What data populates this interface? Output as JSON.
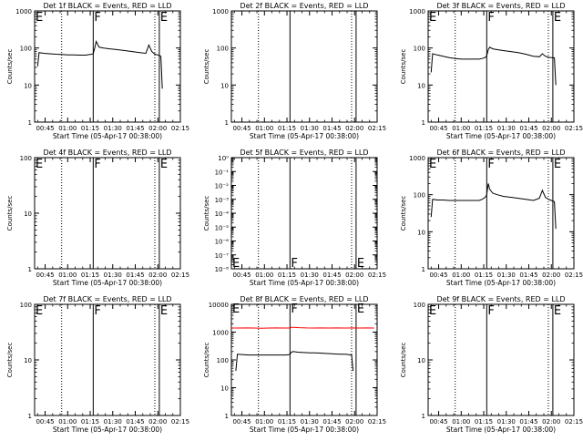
{
  "colors": {
    "events": "#000000",
    "lld": "#ff0000",
    "axis": "#000000"
  },
  "chart_data": [
    {
      "type": "line",
      "title": "Det 1f BLACK = Events, RED = LLD",
      "xlabel": "Start Time (05-Apr-17 00:38:00)",
      "ylabel": "Counts/sec",
      "yscale": "log",
      "xlim": [
        0,
        97
      ],
      "ylim": [
        1,
        1000
      ],
      "yticks": [
        1,
        10,
        100,
        1000
      ],
      "ytick_labels": [
        "1",
        "10",
        "100",
        "1000"
      ],
      "xticks": [
        7,
        22,
        37,
        52,
        67,
        82,
        97
      ],
      "xtick_labels": [
        "00:45",
        "01:00",
        "01:15",
        "01:30",
        "01:45",
        "02:00",
        "02:15"
      ],
      "markers": [
        {
          "x": 18,
          "style": "dotted",
          "label": ""
        },
        {
          "x": 39,
          "style": "solid",
          "label": "F"
        },
        {
          "x": 80,
          "style": "dotted",
          "label": ""
        },
        {
          "x": 83,
          "style": "solid",
          "label": "E"
        }
      ],
      "marker_labels": [
        {
          "text": "E",
          "x": 0
        }
      ],
      "series": [
        {
          "color": "#000000",
          "x": [
            2,
            3,
            6,
            10,
            14,
            18,
            22,
            26,
            30,
            34,
            36,
            38,
            39,
            40,
            41,
            43,
            46,
            50,
            55,
            60,
            65,
            70,
            74,
            76,
            78,
            80,
            82,
            84,
            85
          ],
          "y": [
            32,
            75,
            72,
            70,
            68,
            67,
            65,
            65,
            64,
            64,
            66,
            68,
            70,
            100,
            150,
            105,
            100,
            95,
            90,
            85,
            80,
            75,
            72,
            120,
            80,
            68,
            65,
            60,
            8
          ]
        }
      ]
    },
    {
      "type": "line",
      "title": "Det 2f BLACK = Events, RED = LLD",
      "xlabel": "Start Time (05-Apr-17 00:38:00)",
      "ylabel": "Counts/sec",
      "yscale": "log",
      "xlim": [
        0,
        97
      ],
      "ylim": [
        1,
        1000
      ],
      "yticks": [
        1,
        10,
        100,
        1000
      ],
      "ytick_labels": [
        "1",
        "10",
        "100",
        "1000"
      ],
      "xticks": [
        7,
        22,
        37,
        52,
        67,
        82,
        97
      ],
      "xtick_labels": [
        "00:45",
        "01:00",
        "01:15",
        "01:30",
        "01:45",
        "02:00",
        "02:15"
      ],
      "markers": [
        {
          "x": 18,
          "style": "dotted",
          "label": ""
        },
        {
          "x": 39,
          "style": "solid",
          "label": ""
        },
        {
          "x": 80,
          "style": "dotted",
          "label": ""
        },
        {
          "x": 83,
          "style": "solid",
          "label": ""
        }
      ],
      "marker_labels": [],
      "series": []
    },
    {
      "type": "line",
      "title": "Det 3f BLACK = Events, RED = LLD",
      "xlabel": "Start Time (05-Apr-17 00:38:00)",
      "ylabel": "Counts/sec",
      "yscale": "log",
      "xlim": [
        0,
        97
      ],
      "ylim": [
        1,
        1000
      ],
      "yticks": [
        1,
        10,
        100,
        1000
      ],
      "ytick_labels": [
        "1",
        "10",
        "100",
        "1000"
      ],
      "xticks": [
        7,
        22,
        37,
        52,
        67,
        82,
        97
      ],
      "xtick_labels": [
        "00:45",
        "01:00",
        "01:15",
        "01:30",
        "01:45",
        "02:00",
        "02:15"
      ],
      "markers": [
        {
          "x": 18,
          "style": "dotted",
          "label": ""
        },
        {
          "x": 39,
          "style": "solid",
          "label": "F"
        },
        {
          "x": 80,
          "style": "dotted",
          "label": ""
        },
        {
          "x": 83,
          "style": "solid",
          "label": "E"
        }
      ],
      "marker_labels": [
        {
          "text": "E",
          "x": 0
        }
      ],
      "series": [
        {
          "color": "#000000",
          "x": [
            2,
            3,
            6,
            10,
            14,
            18,
            22,
            26,
            30,
            34,
            36,
            38,
            39,
            40,
            41,
            43,
            46,
            50,
            55,
            60,
            65,
            70,
            74,
            76,
            78,
            80,
            82,
            84,
            85
          ],
          "y": [
            22,
            70,
            65,
            60,
            55,
            52,
            50,
            50,
            50,
            50,
            52,
            55,
            62,
            90,
            105,
            95,
            90,
            85,
            80,
            75,
            68,
            60,
            58,
            70,
            60,
            56,
            55,
            54,
            10
          ]
        }
      ]
    },
    {
      "type": "line",
      "title": "Det 4f BLACK = Events, RED = LLD",
      "xlabel": "Start Time (05-Apr-17 00:38:00)",
      "ylabel": "Counts/sec",
      "yscale": "log",
      "xlim": [
        0,
        97
      ],
      "ylim": [
        1,
        100
      ],
      "yticks": [
        1,
        10,
        100
      ],
      "ytick_labels": [
        "1",
        "10",
        "100"
      ],
      "xticks": [
        7,
        22,
        37,
        52,
        67,
        82,
        97
      ],
      "xtick_labels": [
        "00:45",
        "01:00",
        "01:15",
        "01:30",
        "01:45",
        "02:00",
        "02:15"
      ],
      "markers": [
        {
          "x": 18,
          "style": "dotted",
          "label": ""
        },
        {
          "x": 39,
          "style": "solid",
          "label": "F"
        },
        {
          "x": 80,
          "style": "dotted",
          "label": ""
        },
        {
          "x": 83,
          "style": "solid",
          "label": "E"
        }
      ],
      "marker_labels": [
        {
          "text": "E",
          "x": 0
        }
      ],
      "series": []
    },
    {
      "type": "line",
      "title": "Det 5f BLACK = Events, RED = LLD",
      "xlabel": "Start Time (05-Apr-17 00:38:00)",
      "ylabel": "Counts/sec",
      "yscale": "log",
      "xlim": [
        0,
        97
      ],
      "ylim": [
        1e-08,
        1
      ],
      "yticks": [
        1e-08,
        1e-07,
        1e-06,
        1e-05,
        0.0001,
        0.001,
        0.01,
        0.1,
        1
      ],
      "ytick_labels": [
        "10⁻⁸",
        "10⁻⁷",
        "10⁻⁶",
        "10⁻⁵",
        "10⁻⁴",
        "10⁻³",
        "10⁻²",
        "10⁻¹",
        "10⁰"
      ],
      "xticks": [
        7,
        22,
        37,
        52,
        67,
        82,
        97
      ],
      "xtick_labels": [
        "00:45",
        "01:00",
        "01:15",
        "01:30",
        "01:45",
        "02:00",
        "02:15"
      ],
      "markers": [
        {
          "x": 18,
          "style": "dotted",
          "label": ""
        },
        {
          "x": 39,
          "style": "solid",
          "label": ""
        },
        {
          "x": 80,
          "style": "dotted",
          "label": ""
        },
        {
          "x": 83,
          "style": "solid",
          "label": ""
        }
      ],
      "marker_labels": [
        {
          "text": "E",
          "x": 0
        },
        {
          "text": "F",
          "x": 39
        },
        {
          "text": "E",
          "x": 83
        }
      ],
      "series": []
    },
    {
      "type": "line",
      "title": "Det 6f BLACK = Events, RED = LLD",
      "xlabel": "Start Time (05-Apr-17 00:38:00)",
      "ylabel": "Counts/sec",
      "yscale": "log",
      "xlim": [
        0,
        97
      ],
      "ylim": [
        1,
        1000
      ],
      "yticks": [
        1,
        10,
        100,
        1000
      ],
      "ytick_labels": [
        "1",
        "10",
        "100",
        "1000"
      ],
      "xticks": [
        7,
        22,
        37,
        52,
        67,
        82,
        97
      ],
      "xtick_labels": [
        "00:45",
        "01:00",
        "01:15",
        "01:30",
        "01:45",
        "02:00",
        "02:15"
      ],
      "markers": [
        {
          "x": 18,
          "style": "dotted",
          "label": ""
        },
        {
          "x": 39,
          "style": "solid",
          "label": "F"
        },
        {
          "x": 80,
          "style": "dotted",
          "label": ""
        },
        {
          "x": 83,
          "style": "solid",
          "label": "E"
        }
      ],
      "marker_labels": [
        {
          "text": "E",
          "x": 0
        }
      ],
      "series": [
        {
          "color": "#000000",
          "x": [
            2,
            3,
            6,
            10,
            14,
            18,
            22,
            26,
            30,
            34,
            36,
            38,
            39,
            40,
            41,
            43,
            46,
            50,
            55,
            60,
            65,
            70,
            74,
            76,
            78,
            80,
            82,
            84,
            85
          ],
          "y": [
            25,
            75,
            72,
            72,
            70,
            70,
            70,
            70,
            70,
            70,
            75,
            85,
            100,
            200,
            140,
            110,
            100,
            90,
            85,
            80,
            75,
            70,
            80,
            130,
            85,
            75,
            70,
            65,
            12
          ]
        }
      ]
    },
    {
      "type": "line",
      "title": "Det 7f BLACK = Events, RED = LLD",
      "xlabel": "Start Time (05-Apr-17 00:38:00)",
      "ylabel": "Counts/sec",
      "yscale": "log",
      "xlim": [
        0,
        97
      ],
      "ylim": [
        1,
        100
      ],
      "yticks": [
        1,
        10,
        100
      ],
      "ytick_labels": [
        "1",
        "10",
        "100"
      ],
      "xticks": [
        7,
        22,
        37,
        52,
        67,
        82,
        97
      ],
      "xtick_labels": [
        "00:45",
        "01:00",
        "01:15",
        "01:30",
        "01:45",
        "02:00",
        "02:15"
      ],
      "markers": [
        {
          "x": 18,
          "style": "dotted",
          "label": ""
        },
        {
          "x": 39,
          "style": "solid",
          "label": "F"
        },
        {
          "x": 80,
          "style": "dotted",
          "label": ""
        },
        {
          "x": 83,
          "style": "solid",
          "label": "E"
        }
      ],
      "marker_labels": [
        {
          "text": "E",
          "x": 0
        }
      ],
      "series": []
    },
    {
      "type": "line",
      "title": "Det 8f BLACK = Events, RED = LLD",
      "xlabel": "Start Time (05-Apr-17 00:38:00)",
      "ylabel": "Counts/sec",
      "yscale": "log",
      "xlim": [
        0,
        97
      ],
      "ylim": [
        1,
        10000
      ],
      "yticks": [
        1,
        10,
        100,
        1000,
        10000
      ],
      "ytick_labels": [
        "1",
        "10",
        "100",
        "1000",
        "10000"
      ],
      "xticks": [
        7,
        22,
        37,
        52,
        67,
        82,
        97
      ],
      "xtick_labels": [
        "00:45",
        "01:00",
        "01:15",
        "01:30",
        "01:45",
        "02:00",
        "02:15"
      ],
      "markers": [
        {
          "x": 18,
          "style": "dotted",
          "label": ""
        },
        {
          "x": 39,
          "style": "solid",
          "label": ""
        },
        {
          "x": 80,
          "style": "dotted",
          "label": ""
        },
        {
          "x": 83,
          "style": "solid",
          "label": ""
        }
      ],
      "marker_labels": [
        {
          "text": "E",
          "x": 0
        },
        {
          "text": "F",
          "x": 39
        },
        {
          "text": "E",
          "x": 83
        }
      ],
      "series": [
        {
          "color": "#ff0000",
          "x": [
            0,
            5,
            10,
            15,
            20,
            25,
            30,
            35,
            39,
            40,
            45,
            50,
            55,
            60,
            65,
            70,
            75,
            80,
            85,
            90,
            95
          ],
          "y": [
            1400,
            1400,
            1420,
            1400,
            1380,
            1400,
            1420,
            1400,
            1400,
            1500,
            1450,
            1420,
            1400,
            1420,
            1400,
            1420,
            1400,
            1420,
            1400,
            1420,
            1400
          ]
        },
        {
          "color": "#000000",
          "x": [
            3,
            4,
            8,
            12,
            16,
            20,
            24,
            28,
            32,
            36,
            38,
            39,
            40,
            41,
            44,
            48,
            52,
            56,
            60,
            64,
            68,
            72,
            76,
            78,
            80,
            81
          ],
          "y": [
            40,
            160,
            155,
            150,
            150,
            150,
            150,
            150,
            150,
            150,
            155,
            160,
            190,
            200,
            190,
            185,
            180,
            180,
            175,
            170,
            165,
            160,
            160,
            155,
            150,
            40
          ]
        }
      ]
    },
    {
      "type": "line",
      "title": "Det 9f BLACK = Events, RED = LLD",
      "xlabel": "Start Time (05-Apr-17 00:38:00)",
      "ylabel": "Counts/sec",
      "yscale": "log",
      "xlim": [
        0,
        97
      ],
      "ylim": [
        1,
        100
      ],
      "yticks": [
        1,
        10,
        100
      ],
      "ytick_labels": [
        "1",
        "10",
        "100"
      ],
      "xticks": [
        7,
        22,
        37,
        52,
        67,
        82,
        97
      ],
      "xtick_labels": [
        "00:45",
        "01:00",
        "01:15",
        "01:30",
        "01:45",
        "02:00",
        "02:15"
      ],
      "markers": [
        {
          "x": 18,
          "style": "dotted",
          "label": ""
        },
        {
          "x": 39,
          "style": "solid",
          "label": "F"
        },
        {
          "x": 80,
          "style": "dotted",
          "label": ""
        },
        {
          "x": 83,
          "style": "solid",
          "label": "E"
        }
      ],
      "marker_labels": [
        {
          "text": "E",
          "x": 0
        }
      ],
      "series": []
    }
  ]
}
